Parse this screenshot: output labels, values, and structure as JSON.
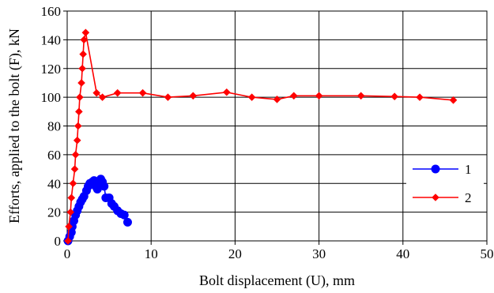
{
  "chart_data": {
    "type": "line",
    "xlabel": "Bolt displacement (U), mm",
    "ylabel": "Efforts, applied to the bolt  (F), kN",
    "xlim": [
      0,
      50
    ],
    "ylim": [
      0,
      160
    ],
    "x_ticks": [
      "0",
      "10",
      "20",
      "30",
      "40",
      "50"
    ],
    "y_ticks": [
      "0",
      "20",
      "40",
      "60",
      "80",
      "100",
      "120",
      "140",
      "160"
    ],
    "grid": true,
    "legend_position": "right",
    "series": [
      {
        "name": "1",
        "color": "#0000ff",
        "marker": "circle",
        "points": [
          [
            0.1,
            0
          ],
          [
            0.3,
            3
          ],
          [
            0.5,
            6
          ],
          [
            0.6,
            10
          ],
          [
            0.8,
            14
          ],
          [
            1.0,
            18
          ],
          [
            1.2,
            21
          ],
          [
            1.4,
            24
          ],
          [
            1.6,
            27
          ],
          [
            1.8,
            29
          ],
          [
            2.0,
            31
          ],
          [
            2.3,
            35
          ],
          [
            2.5,
            38
          ],
          [
            2.7,
            40
          ],
          [
            3.0,
            41
          ],
          [
            3.2,
            42
          ],
          [
            3.4,
            38
          ],
          [
            3.6,
            36
          ],
          [
            3.8,
            40
          ],
          [
            4.0,
            43
          ],
          [
            4.2,
            41
          ],
          [
            4.4,
            38
          ],
          [
            4.6,
            30
          ],
          [
            5.0,
            30
          ],
          [
            5.3,
            26
          ],
          [
            5.6,
            24
          ],
          [
            6.0,
            21
          ],
          [
            6.4,
            19
          ],
          [
            6.8,
            18
          ],
          [
            7.2,
            13
          ]
        ]
      },
      {
        "name": "2",
        "color": "#ff0000",
        "marker": "diamond",
        "points": [
          [
            0.1,
            0
          ],
          [
            0.2,
            10
          ],
          [
            0.4,
            20
          ],
          [
            0.5,
            30
          ],
          [
            0.7,
            40
          ],
          [
            0.9,
            50
          ],
          [
            1.0,
            60
          ],
          [
            1.2,
            70
          ],
          [
            1.3,
            80
          ],
          [
            1.4,
            90
          ],
          [
            1.5,
            100
          ],
          [
            1.7,
            110
          ],
          [
            1.8,
            120
          ],
          [
            1.9,
            130
          ],
          [
            2.0,
            140
          ],
          [
            2.2,
            145
          ],
          [
            3.5,
            103
          ],
          [
            4.2,
            100
          ],
          [
            6.0,
            103
          ],
          [
            9.0,
            103
          ],
          [
            12.0,
            100
          ],
          [
            15.0,
            101
          ],
          [
            19.0,
            103.5
          ],
          [
            22.0,
            100
          ],
          [
            25.0,
            98.5
          ],
          [
            27.0,
            101
          ],
          [
            30.0,
            101
          ],
          [
            35.0,
            101
          ],
          [
            39.0,
            100.5
          ],
          [
            42.0,
            100
          ],
          [
            46.0,
            98
          ]
        ]
      }
    ]
  }
}
